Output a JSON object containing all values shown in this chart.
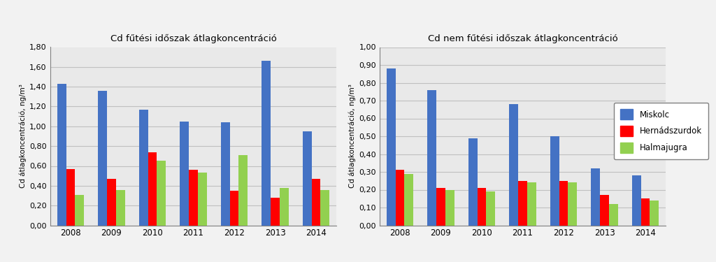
{
  "years": [
    2008,
    2009,
    2010,
    2011,
    2012,
    2013,
    2014
  ],
  "heating": {
    "Miskolc": [
      1.43,
      1.36,
      1.17,
      1.05,
      1.04,
      1.66,
      0.95
    ],
    "Hernádszurdok": [
      0.57,
      0.47,
      0.74,
      0.56,
      0.35,
      0.28,
      0.47
    ],
    "Halmajugra": [
      0.31,
      0.36,
      0.65,
      0.53,
      0.71,
      0.38,
      0.36
    ]
  },
  "non_heating": {
    "Miskolc": [
      0.88,
      0.76,
      0.49,
      0.68,
      0.5,
      0.32,
      0.28
    ],
    "Hernádszurdok": [
      0.31,
      0.21,
      0.21,
      0.25,
      0.25,
      0.17,
      0.15
    ],
    "Halmajugra": [
      0.29,
      0.2,
      0.19,
      0.24,
      0.24,
      0.12,
      0.14
    ]
  },
  "title_heating": "Cd fűtési időszak átlagkoncentráció",
  "title_non_heating": "Cd nem fűtési időszak átlagkoncentráció",
  "ylabel": "Cd átlagkoncentráció, ng/m³",
  "ylim_heating": [
    0.0,
    1.8
  ],
  "ylim_non_heating": [
    0.0,
    1.0
  ],
  "yticks_heating": [
    0.0,
    0.2,
    0.4,
    0.6,
    0.8,
    1.0,
    1.2,
    1.4,
    1.6,
    1.8
  ],
  "yticks_non_heating": [
    0.0,
    0.1,
    0.2,
    0.3,
    0.4,
    0.5,
    0.6,
    0.7,
    0.8,
    0.9,
    1.0
  ],
  "colors": {
    "Miskolc": "#4472C4",
    "Hernádszurdok": "#FF0000",
    "Halmajugra": "#92D050"
  },
  "legend_labels": [
    "Miskolc",
    "Hernádszurdok",
    "Halmajugra"
  ],
  "bar_width": 0.22,
  "grid_color": "#C0C0C0",
  "plot_bg": "#E9E9E9",
  "fig_bg": "#F2F2F2"
}
